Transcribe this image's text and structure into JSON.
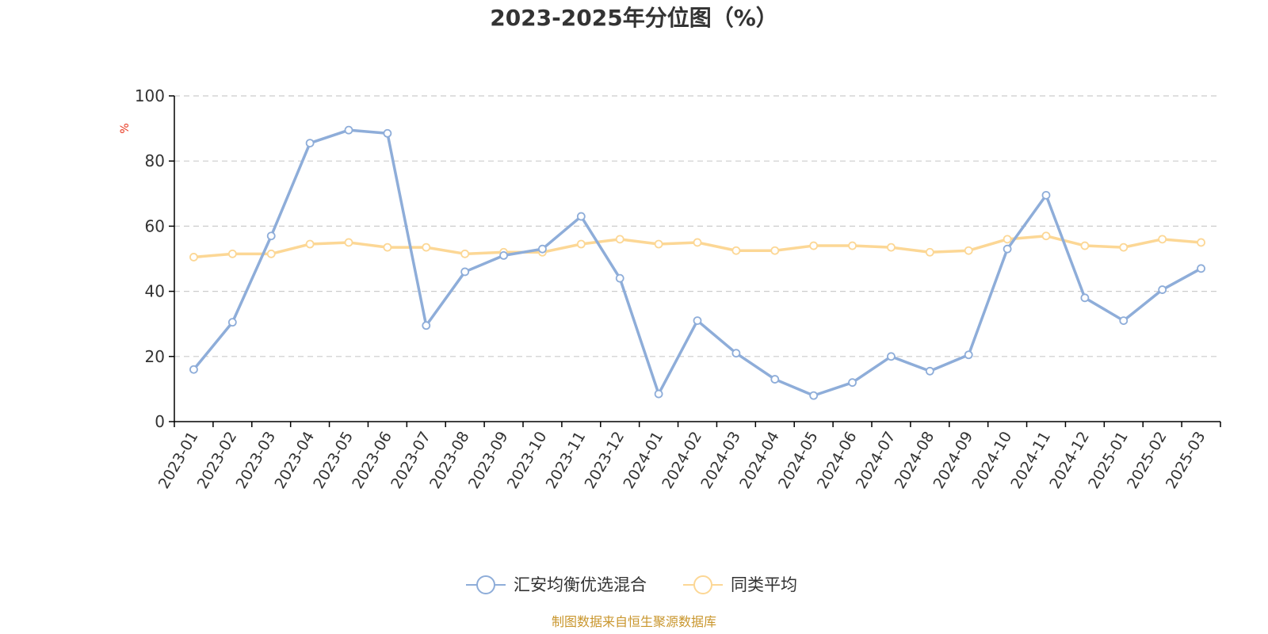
{
  "colors": {
    "series1": "#8eadd9",
    "series2": "#fcd795",
    "unit": "#e8341c",
    "source": "#c9962d",
    "axis": "#000000",
    "grid": "#cccccc",
    "text": "#333333"
  },
  "source_text": "制图数据来自恒生聚源数据库",
  "chart_data": {
    "type": "line",
    "title": "2023-2025年分位图（%）",
    "y_unit": "%",
    "ylim": [
      0,
      100
    ],
    "y_ticks": [
      0,
      20,
      40,
      60,
      80,
      100
    ],
    "grid": "horizontal-dashed",
    "legend_position": "bottom-center",
    "categories": [
      "2023-01",
      "2023-02",
      "2023-03",
      "2023-04",
      "2023-05",
      "2023-06",
      "2023-07",
      "2023-08",
      "2023-09",
      "2023-10",
      "2023-11",
      "2023-12",
      "2024-01",
      "2024-02",
      "2024-03",
      "2024-04",
      "2024-05",
      "2024-06",
      "2024-07",
      "2024-08",
      "2024-09",
      "2024-10",
      "2024-11",
      "2024-12",
      "2025-01",
      "2025-02",
      "2025-03"
    ],
    "series": [
      {
        "name": "汇安均衡优选混合",
        "values": [
          16,
          30.5,
          57,
          85.5,
          89.5,
          88.5,
          29.5,
          46,
          51,
          53,
          63,
          44,
          8.5,
          31,
          21,
          13,
          8,
          12,
          20,
          15.5,
          20.5,
          53,
          69.5,
          38,
          31,
          40.5,
          47
        ]
      },
      {
        "name": "同类平均",
        "values": [
          50.5,
          51.5,
          51.5,
          54.5,
          55,
          53.5,
          53.5,
          51.5,
          52,
          52,
          54.5,
          56,
          54.5,
          55,
          52.5,
          52.5,
          54,
          54,
          53.5,
          52,
          52.5,
          56,
          57,
          54,
          53.5,
          56,
          55
        ]
      }
    ]
  }
}
